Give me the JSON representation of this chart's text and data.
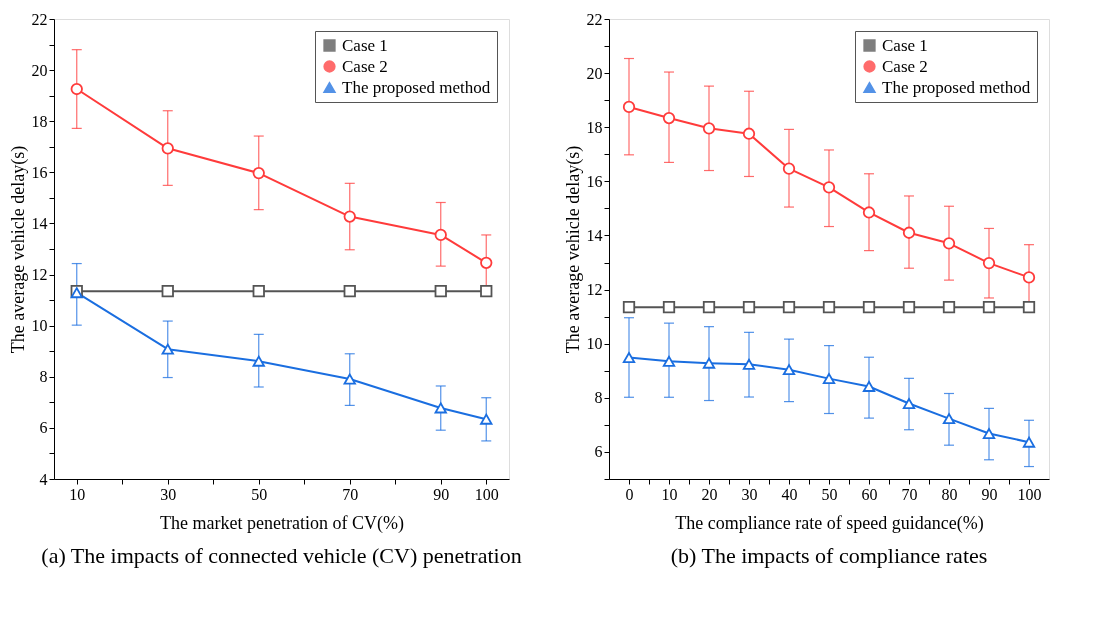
{
  "chart_data": [
    {
      "type": "line",
      "xlabel": "The market penetration of CV(%)",
      "ylabel": "The average vehicle delay(s)",
      "annotations": [
        "(a) The impacts of connected vehicle (CV) penetration"
      ],
      "legend": "top right",
      "x": [
        10,
        30,
        50,
        70,
        90,
        100
      ],
      "xlim": [
        5,
        105
      ],
      "xticks": [
        10,
        {
          "value": 20,
          "label": null
        },
        30,
        {
          "value": 40,
          "label": null
        },
        50,
        {
          "value": 60,
          "label": null
        },
        70,
        {
          "value": 80,
          "label": null
        },
        90,
        100
      ],
      "ylim": [
        4,
        22
      ],
      "yticks": [
        4,
        {
          "value": 5,
          "label": null
        },
        6,
        {
          "value": 7,
          "label": null
        },
        8,
        {
          "value": 9,
          "label": null
        },
        10,
        {
          "value": 11,
          "label": null
        },
        12,
        {
          "value": 13,
          "label": null
        },
        14,
        {
          "value": 15,
          "label": null
        },
        16,
        {
          "value": 17,
          "label": null
        },
        18,
        {
          "value": 19,
          "label": null
        },
        20,
        {
          "value": 21,
          "label": null
        },
        22
      ],
      "series": [
        {
          "name": "Case 1",
          "color": "#545454",
          "marker": "square",
          "values": [
            11.35,
            11.35,
            11.35,
            11.35,
            11.35,
            11.35
          ]
        },
        {
          "name": "Case 2",
          "color": "#ff3b3b",
          "marker": "circle",
          "values": [
            19.26,
            16.94,
            15.97,
            14.27,
            13.55,
            12.46
          ],
          "errors": [
            [
              17.72,
              20.8
            ],
            [
              15.49,
              18.41
            ],
            [
              14.54,
              17.42
            ],
            [
              12.97,
              15.57
            ],
            [
              12.33,
              14.82
            ],
            [
              11.5,
              13.55
            ]
          ]
        },
        {
          "name": "The proposed method",
          "color": "#1a6ee0",
          "marker": "triangle",
          "values": [
            11.29,
            9.08,
            8.61,
            7.91,
            6.78,
            6.34
          ],
          "errors": [
            [
              10.02,
              12.43
            ],
            [
              7.97,
              10.18
            ],
            [
              7.6,
              9.66
            ],
            [
              6.88,
              8.9
            ],
            [
              5.91,
              7.64
            ],
            [
              5.49,
              7.18
            ]
          ]
        }
      ]
    },
    {
      "type": "line",
      "xlabel": "The compliance rate of speed guidance(%)",
      "ylabel": "The average vehicle delay(s)",
      "annotations": [
        "(b) The impacts of compliance rates"
      ],
      "legend": "top right",
      "x": [
        0,
        10,
        20,
        30,
        40,
        50,
        60,
        70,
        80,
        90,
        100
      ],
      "xlim": [
        -5,
        105
      ],
      "xticks": [
        0,
        {
          "value": 5,
          "label": null
        },
        10,
        {
          "value": 15,
          "label": null
        },
        20,
        {
          "value": 25,
          "label": null
        },
        30,
        {
          "value": 35,
          "label": null
        },
        40,
        {
          "value": 45,
          "label": null
        },
        50,
        {
          "value": 55,
          "label": null
        },
        60,
        {
          "value": 65,
          "label": null
        },
        70,
        {
          "value": 75,
          "label": null
        },
        80,
        {
          "value": 85,
          "label": null
        },
        90,
        {
          "value": 95,
          "label": null
        },
        100
      ],
      "ylim": [
        5,
        22
      ],
      "yticks": [
        {
          "value": 5,
          "label": null
        },
        6,
        {
          "value": 7,
          "label": null
        },
        8,
        {
          "value": 9,
          "label": null
        },
        10,
        {
          "value": 11,
          "label": null
        },
        12,
        {
          "value": 13,
          "label": null
        },
        14,
        {
          "value": 15,
          "label": null
        },
        16,
        {
          "value": 17,
          "label": null
        },
        18,
        {
          "value": 19,
          "label": null
        },
        20,
        {
          "value": 21,
          "label": null
        },
        22
      ],
      "series": [
        {
          "name": "Case 1",
          "color": "#545454",
          "marker": "square",
          "values": [
            11.35,
            11.35,
            11.35,
            11.35,
            11.35,
            11.35,
            11.35,
            11.35,
            11.35,
            11.35,
            11.35
          ]
        },
        {
          "name": "Case 2",
          "color": "#ff3b3b",
          "marker": "circle",
          "values": [
            18.75,
            18.34,
            17.96,
            17.76,
            16.47,
            15.78,
            14.85,
            14.1,
            13.71,
            12.98,
            12.45
          ],
          "errors": [
            [
              16.98,
              20.54
            ],
            [
              16.7,
              20.04
            ],
            [
              16.4,
              19.52
            ],
            [
              16.18,
              19.33
            ],
            [
              15.05,
              17.92
            ],
            [
              14.33,
              17.16
            ],
            [
              13.44,
              16.28
            ],
            [
              12.79,
              15.46
            ],
            [
              12.35,
              15.08
            ],
            [
              11.69,
              14.26
            ],
            [
              11.3,
              13.66
            ]
          ]
        },
        {
          "name": "The proposed method",
          "color": "#1a6ee0",
          "marker": "triangle",
          "values": [
            9.49,
            9.35,
            9.28,
            9.24,
            9.04,
            8.71,
            8.42,
            7.79,
            7.23,
            6.68,
            6.36
          ],
          "errors": [
            [
              8.02,
              10.96
            ],
            [
              8.02,
              10.76
            ],
            [
              7.9,
              10.63
            ],
            [
              8.03,
              10.42
            ],
            [
              7.86,
              10.17
            ],
            [
              7.42,
              9.93
            ],
            [
              7.25,
              9.5
            ],
            [
              6.82,
              8.72
            ],
            [
              6.25,
              8.16
            ],
            [
              5.71,
              7.61
            ],
            [
              5.46,
              7.17
            ]
          ]
        }
      ]
    }
  ]
}
